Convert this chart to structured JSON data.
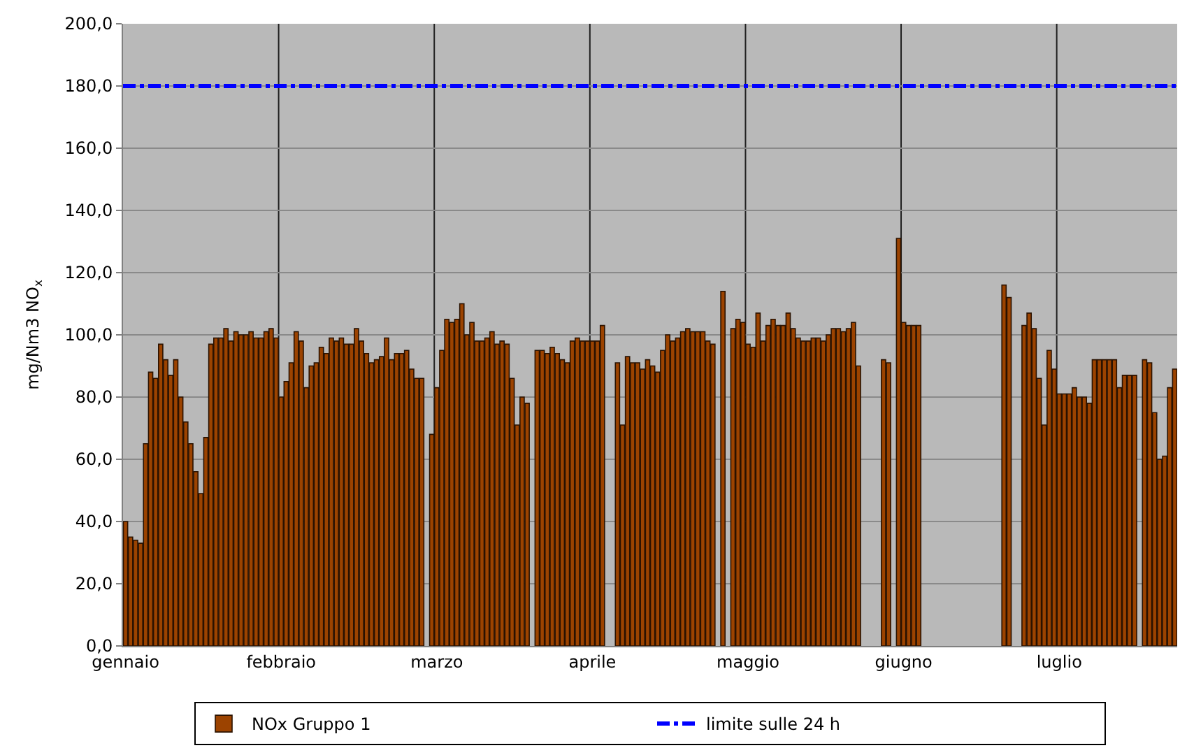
{
  "chart_data": {
    "type": "bar",
    "ylabel": "mg/Nm3 NO$_{x}$",
    "categories": [
      "gennaio",
      null,
      null,
      null,
      null,
      null,
      null,
      null,
      null,
      null,
      null,
      null,
      null,
      null,
      null,
      null,
      null,
      null,
      null,
      null,
      null,
      null,
      null,
      null,
      null,
      null,
      null,
      null,
      null,
      null,
      null,
      "febbraio",
      null,
      null,
      null,
      null,
      null,
      null,
      null,
      null,
      null,
      null,
      null,
      null,
      null,
      null,
      null,
      null,
      null,
      null,
      null,
      null,
      null,
      null,
      null,
      null,
      null,
      null,
      null,
      null,
      null,
      null,
      "marzo",
      null,
      null,
      null,
      null,
      null,
      null,
      null,
      null,
      null,
      null,
      null,
      null,
      null,
      null,
      null,
      null,
      null,
      null,
      null,
      null,
      null,
      null,
      null,
      null,
      null,
      null,
      null,
      null,
      null,
      null,
      "aprile",
      null,
      null,
      null,
      null,
      null,
      null,
      null,
      null,
      null,
      null,
      null,
      null,
      null,
      null,
      null,
      null,
      null,
      null,
      null,
      null,
      null,
      null,
      null,
      null,
      null,
      null,
      null,
      null,
      null,
      null,
      "maggio",
      null,
      null,
      null,
      null,
      null,
      null,
      null,
      null,
      null,
      null,
      null,
      null,
      null,
      null,
      null,
      null,
      null,
      null,
      null,
      null,
      null,
      null,
      null,
      null,
      null,
      null,
      null,
      null,
      null,
      null,
      "giugno",
      null,
      null,
      null,
      null,
      null,
      null,
      null,
      null,
      null,
      null,
      null,
      null,
      null,
      null,
      null,
      null,
      null,
      null,
      null,
      null,
      null,
      null,
      null,
      null,
      null,
      null,
      null,
      null,
      null,
      null,
      "luglio",
      null,
      null,
      null,
      null,
      null,
      null,
      null,
      null,
      null,
      null,
      null,
      null,
      null,
      null,
      null,
      null,
      null,
      null,
      null,
      null,
      null,
      null,
      null
    ],
    "series": [
      {
        "name": "NOx Gruppo 1",
        "color": "#9c4300",
        "values": [
          40,
          35,
          34,
          33,
          65,
          88,
          86,
          97,
          92,
          87,
          92,
          80,
          72,
          65,
          56,
          49,
          67,
          97,
          99,
          99,
          102,
          98,
          101,
          100,
          100,
          101,
          99,
          99,
          101,
          102,
          99,
          80,
          85,
          91,
          101,
          98,
          83,
          90,
          91,
          96,
          94,
          99,
          98,
          99,
          97,
          97,
          102,
          98,
          94,
          91,
          92,
          93,
          99,
          92,
          94,
          94,
          95,
          89,
          86,
          86,
          null,
          68,
          83,
          95,
          105,
          104,
          105,
          110,
          100,
          104,
          98,
          98,
          99,
          101,
          97,
          98,
          97,
          86,
          71,
          80,
          78,
          null,
          95,
          95,
          94,
          96,
          94,
          92,
          91,
          98,
          99,
          98,
          98,
          98,
          98,
          103,
          null,
          null,
          91,
          71,
          93,
          91,
          91,
          89,
          92,
          90,
          88,
          95,
          100,
          98,
          99,
          101,
          102,
          101,
          101,
          101,
          98,
          97,
          null,
          114,
          null,
          102,
          105,
          104,
          97,
          96,
          107,
          98,
          103,
          105,
          103,
          103,
          107,
          102,
          99,
          98,
          98,
          99,
          99,
          98,
          100,
          102,
          102,
          101,
          102,
          104,
          90,
          null,
          null,
          null,
          null,
          92,
          91,
          null,
          131,
          104,
          103,
          103,
          103,
          null,
          null,
          null,
          null,
          null,
          null,
          null,
          null,
          null,
          null,
          null,
          null,
          null,
          null,
          null,
          null,
          116,
          112,
          null,
          null,
          103,
          107,
          102,
          86,
          71,
          95,
          89,
          81,
          81,
          81,
          83,
          80,
          80,
          78,
          92,
          92,
          92,
          92,
          92,
          83,
          87,
          87,
          87,
          null,
          92,
          91,
          75,
          60,
          61,
          83,
          89
        ]
      }
    ],
    "ylim": [
      0,
      200
    ],
    "yticks": [
      {
        "value": 0,
        "label": "0,0"
      },
      {
        "value": 20,
        "label": "20,0"
      },
      {
        "value": 40,
        "label": "40,0"
      },
      {
        "value": 60,
        "label": "60,0"
      },
      {
        "value": 80,
        "label": "80,0"
      },
      {
        "value": 100,
        "label": "100,0"
      },
      {
        "value": 120,
        "label": "120,0"
      },
      {
        "value": 140,
        "label": "140,0"
      },
      {
        "value": 160,
        "label": "160,0"
      },
      {
        "value": 180,
        "label": "180,0"
      },
      {
        "value": 200,
        "label": "200,0"
      }
    ],
    "ref_lines": [
      {
        "axis": "y",
        "value": 180,
        "label": "limite sulle 24 h",
        "color": "#0000ff",
        "line_style": "dashdot"
      }
    ],
    "grid": true,
    "legend": "bottom"
  }
}
